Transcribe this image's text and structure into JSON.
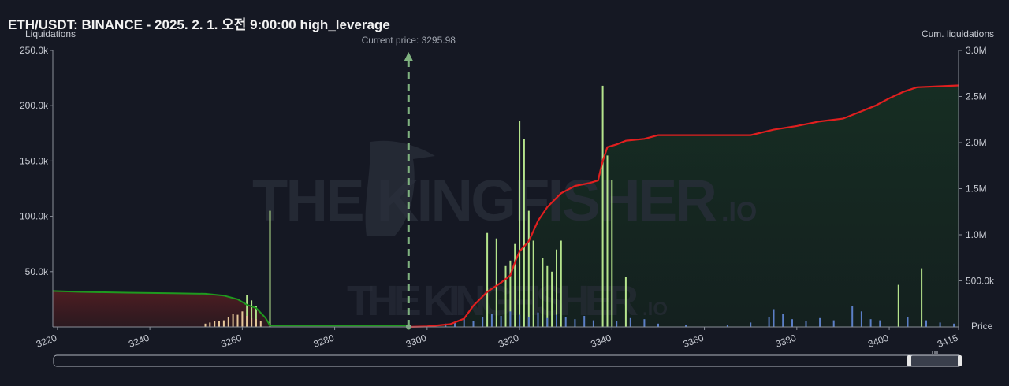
{
  "header": {
    "title": "ETH/USDT: BINANCE - 2025. 2. 1. 오전 9:00:00 high_leverage"
  },
  "colors": {
    "background": "#151823",
    "short_cum_line": "#e01f1f",
    "long_cum_line": "#1f9a1f",
    "bar_green": "#b5e48c",
    "bar_blue": "#5b7fc7",
    "bar_tan": "#e6c79a",
    "current_price_line": "#7fb27f"
  },
  "watermark": {
    "text_main": "THE KINGFISHER",
    "text_suffix": ".IO"
  },
  "chart_data": {
    "type": "bar",
    "title": "ETH/USDT: BINANCE - 2025. 2. 1. 오전 9:00:00 high_leverage",
    "ylabel": "Liquidations",
    "y2label": "Cum. liquidations",
    "xlabel": "Price",
    "xlim": [
      3219,
      3415
    ],
    "ylim": [
      0,
      250000
    ],
    "y2lim": [
      0,
      3000000
    ],
    "x_ticks": [
      "3220",
      "3240",
      "3260",
      "3280",
      "3300",
      "3320",
      "3340",
      "3360",
      "3380",
      "3400",
      "3415"
    ],
    "y_ticks": [
      "50.0k",
      "100.0k",
      "150.0k",
      "200.0k",
      "250.0k"
    ],
    "y2_ticks": [
      "500.0k",
      "1.0M",
      "1.5M",
      "2.0M",
      "2.5M",
      "3.0M"
    ],
    "current_price": 3295.98,
    "current_price_label": "Current price: 3295.98",
    "grid": false,
    "series": [
      {
        "kind": "bars",
        "color": "#b5e48c",
        "points": [
          [
            3261,
            29000
          ],
          [
            3262,
            24000
          ],
          [
            3263,
            19000
          ],
          [
            3266,
            105000
          ],
          [
            3313,
            85000
          ],
          [
            3315,
            80000
          ],
          [
            3317,
            55000
          ],
          [
            3318,
            60000
          ],
          [
            3319,
            75000
          ],
          [
            3320,
            186000
          ],
          [
            3321,
            170000
          ],
          [
            3322,
            105000
          ],
          [
            3323,
            78000
          ],
          [
            3325,
            62000
          ],
          [
            3326,
            55000
          ],
          [
            3327,
            50000
          ],
          [
            3328,
            70000
          ],
          [
            3329,
            78000
          ],
          [
            3338,
            218000
          ],
          [
            3339,
            155000
          ],
          [
            3340,
            133000
          ],
          [
            3343,
            45000
          ],
          [
            3402,
            38000
          ],
          [
            3407,
            53000
          ]
        ]
      },
      {
        "kind": "bars",
        "color": "#5b7fc7",
        "points": [
          [
            3301,
            2000
          ],
          [
            3304,
            3000
          ],
          [
            3306,
            4000
          ],
          [
            3308,
            8000
          ],
          [
            3310,
            5000
          ],
          [
            3312,
            9000
          ],
          [
            3314,
            12000
          ],
          [
            3316,
            10000
          ],
          [
            3318,
            14000
          ],
          [
            3320,
            11000
          ],
          [
            3322,
            9000
          ],
          [
            3324,
            13000
          ],
          [
            3326,
            8000
          ],
          [
            3328,
            11000
          ],
          [
            3330,
            9000
          ],
          [
            3332,
            7000
          ],
          [
            3334,
            10000
          ],
          [
            3336,
            6000
          ],
          [
            3341,
            5000
          ],
          [
            3344,
            8000
          ],
          [
            3347,
            7000
          ],
          [
            3350,
            3000
          ],
          [
            3356,
            2000
          ],
          [
            3365,
            2000
          ],
          [
            3370,
            4000
          ],
          [
            3374,
            9000
          ],
          [
            3375,
            16000
          ],
          [
            3377,
            12000
          ],
          [
            3379,
            7000
          ],
          [
            3382,
            5000
          ],
          [
            3385,
            8000
          ],
          [
            3388,
            6000
          ],
          [
            3392,
            19000
          ],
          [
            3394,
            14000
          ],
          [
            3396,
            7000
          ],
          [
            3398,
            6000
          ],
          [
            3404,
            9000
          ],
          [
            3408,
            6000
          ],
          [
            3411,
            4000
          ],
          [
            3414,
            3000
          ]
        ]
      },
      {
        "kind": "bars",
        "color": "#e6c79a",
        "points": [
          [
            3252,
            3000
          ],
          [
            3253,
            4000
          ],
          [
            3254,
            5000
          ],
          [
            3255,
            5000
          ],
          [
            3256,
            6000
          ],
          [
            3257,
            9000
          ],
          [
            3258,
            12000
          ],
          [
            3259,
            11000
          ],
          [
            3260,
            14000
          ],
          [
            3261,
            10000
          ],
          [
            3262,
            8000
          ],
          [
            3263,
            7000
          ],
          [
            3264,
            5000
          ]
        ]
      },
      {
        "name": "",
        "kind": "cumulative",
        "axis": "right",
        "color": "#1f9a1f",
        "points": [
          [
            3219,
            390000
          ],
          [
            3225,
            380000
          ],
          [
            3235,
            372000
          ],
          [
            3245,
            365000
          ],
          [
            3252,
            360000
          ],
          [
            3256,
            340000
          ],
          [
            3259,
            300000
          ],
          [
            3261,
            240000
          ],
          [
            3263,
            205000
          ],
          [
            3265,
            100000
          ],
          [
            3266,
            15000
          ],
          [
            3296,
            15000
          ]
        ]
      },
      {
        "name": "",
        "kind": "cumulative",
        "axis": "right",
        "color": "#e01f1f",
        "points": [
          [
            3296,
            0
          ],
          [
            3300,
            5000
          ],
          [
            3305,
            30000
          ],
          [
            3308,
            90000
          ],
          [
            3310,
            230000
          ],
          [
            3313,
            380000
          ],
          [
            3316,
            480000
          ],
          [
            3318,
            560000
          ],
          [
            3319,
            700000
          ],
          [
            3320,
            820000
          ],
          [
            3322,
            930000
          ],
          [
            3324,
            1150000
          ],
          [
            3326,
            1300000
          ],
          [
            3329,
            1450000
          ],
          [
            3332,
            1530000
          ],
          [
            3335,
            1560000
          ],
          [
            3337,
            1590000
          ],
          [
            3338,
            1800000
          ],
          [
            3339,
            1950000
          ],
          [
            3341,
            1980000
          ],
          [
            3343,
            2020000
          ],
          [
            3347,
            2040000
          ],
          [
            3350,
            2080000
          ],
          [
            3370,
            2080000
          ],
          [
            3375,
            2140000
          ],
          [
            3380,
            2180000
          ],
          [
            3385,
            2230000
          ],
          [
            3390,
            2260000
          ],
          [
            3393,
            2320000
          ],
          [
            3397,
            2400000
          ],
          [
            3400,
            2480000
          ],
          [
            3403,
            2550000
          ],
          [
            3406,
            2600000
          ],
          [
            3415,
            2620000
          ]
        ]
      }
    ]
  }
}
